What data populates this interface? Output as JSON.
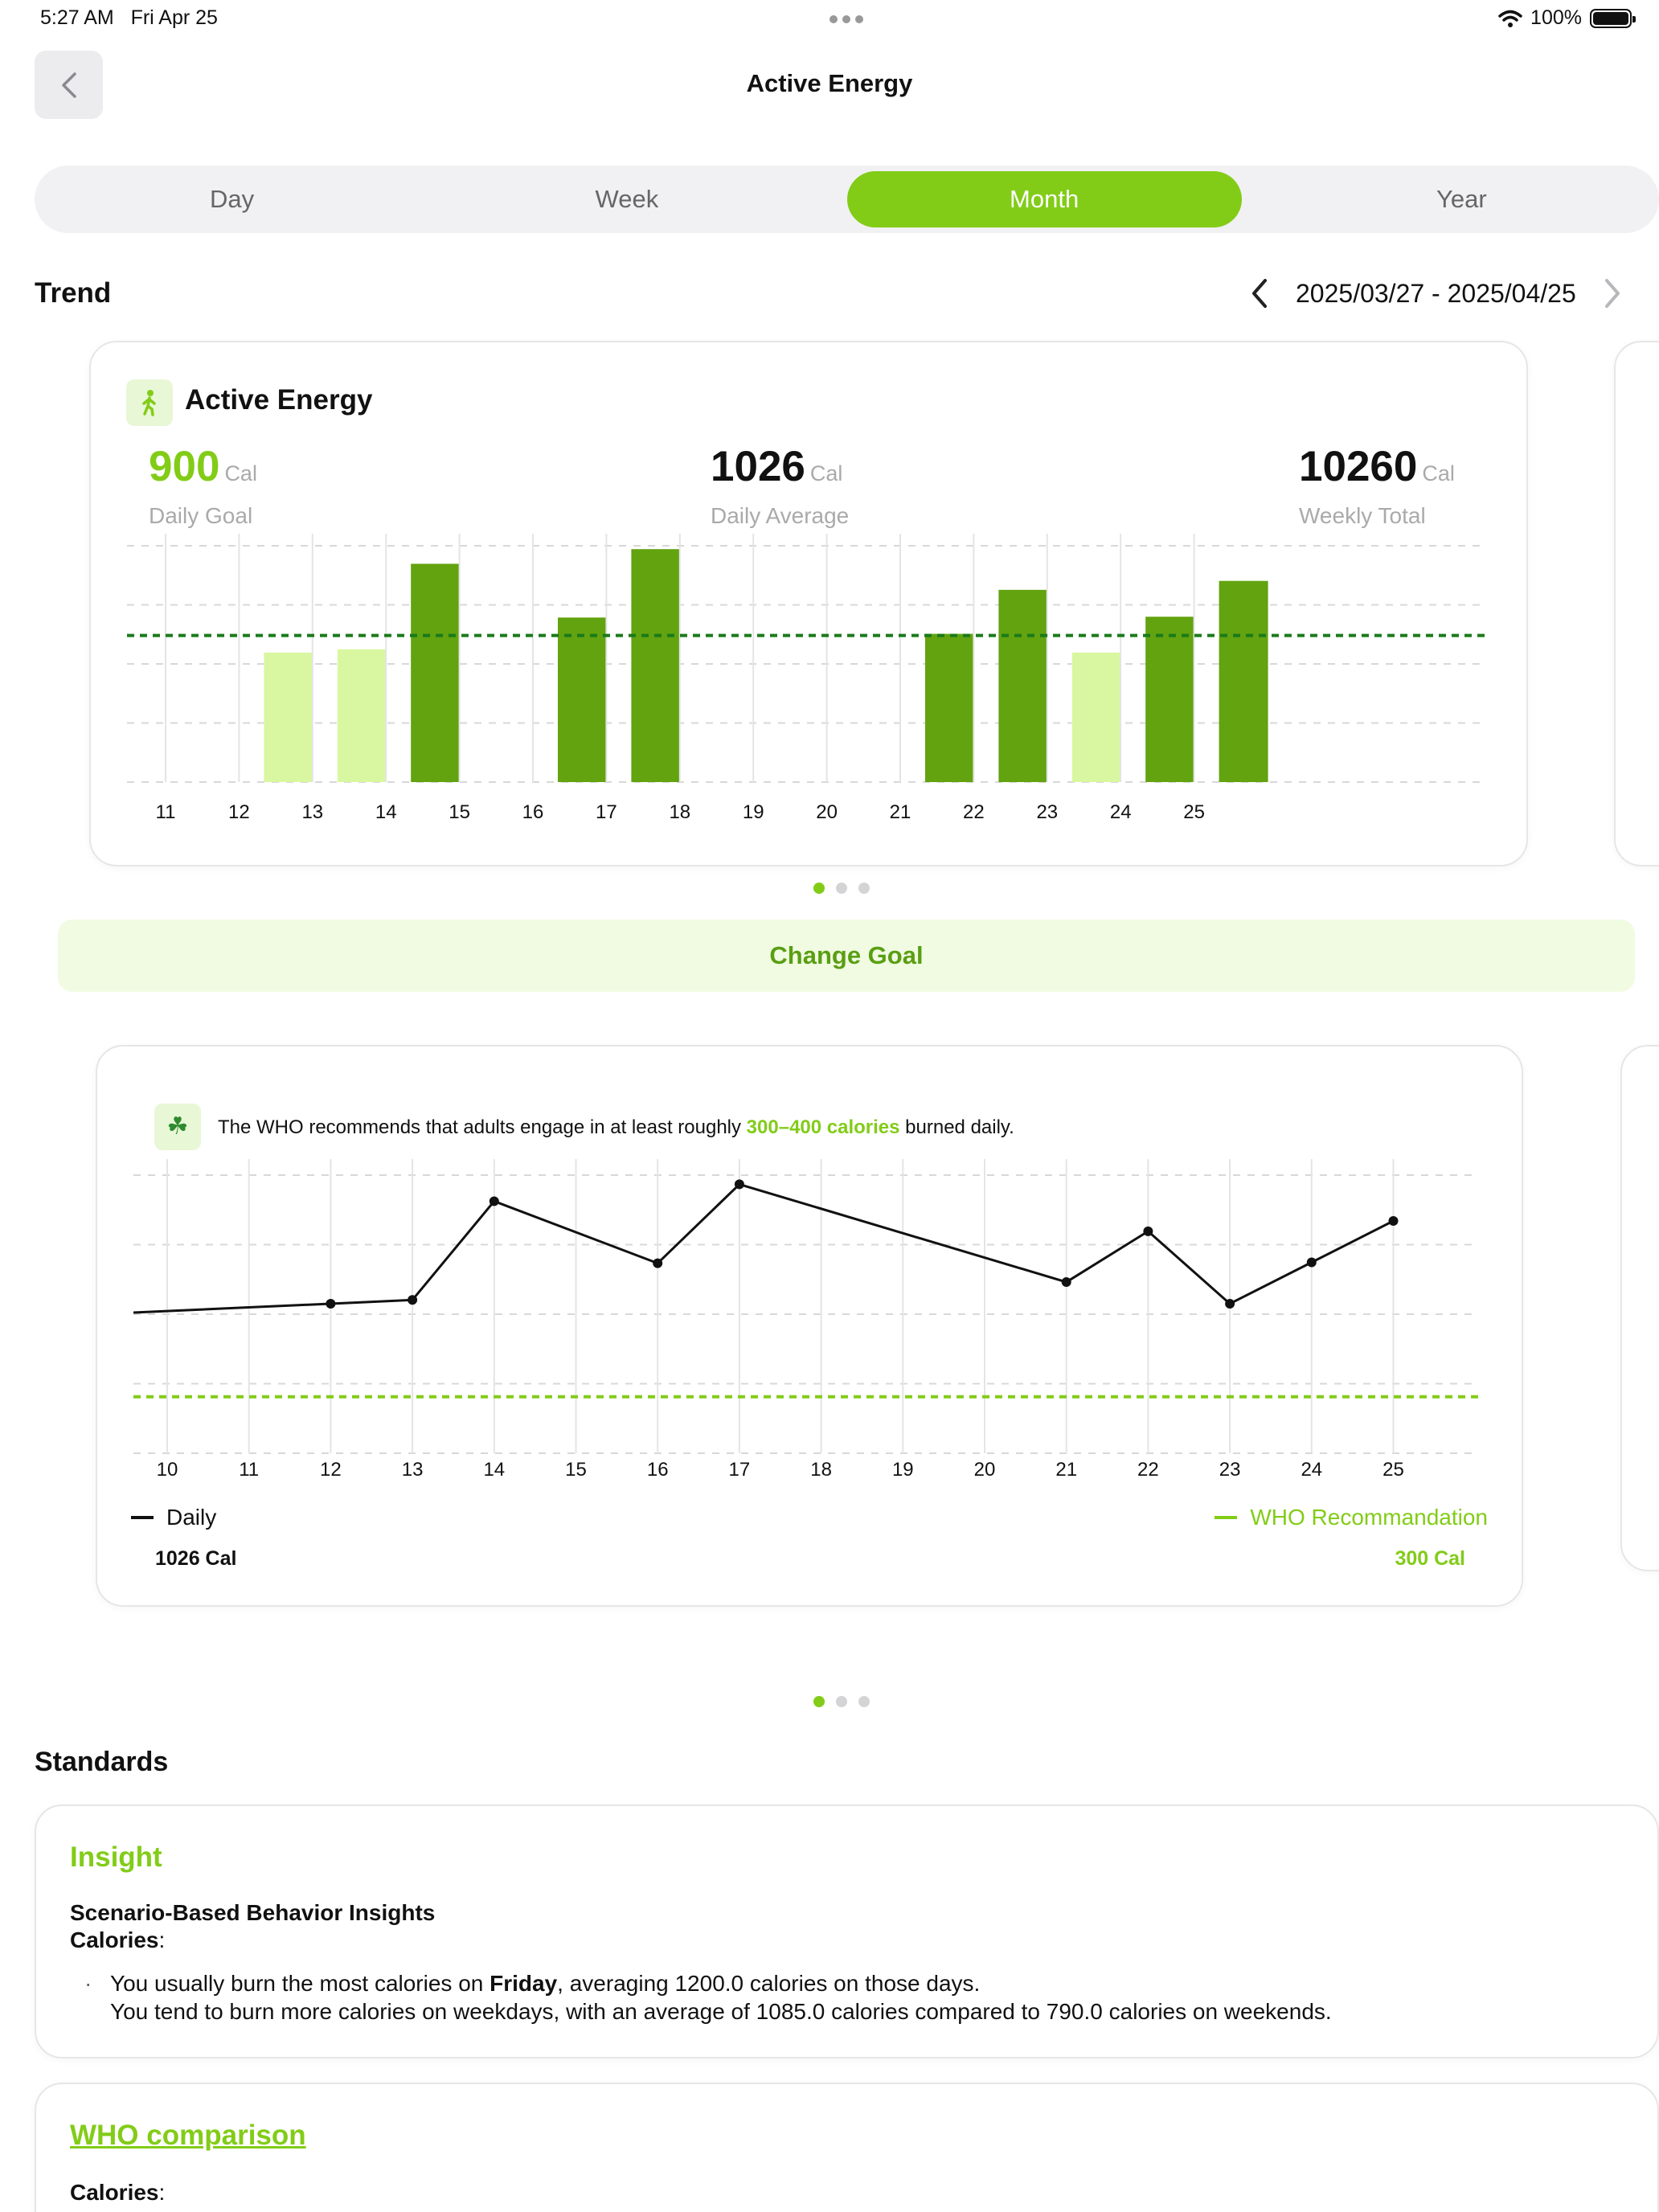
{
  "status": {
    "time": "5:27 AM",
    "date": "Fri Apr 25",
    "battery": "100%"
  },
  "header": {
    "title": "Active Energy"
  },
  "tabs": [
    {
      "label": "Day",
      "active": false
    },
    {
      "label": "Week",
      "active": false
    },
    {
      "label": "Month",
      "active": true
    },
    {
      "label": "Year",
      "active": false
    }
  ],
  "trend": {
    "label": "Trend",
    "date_range": "2025/03/27 - 2025/04/25"
  },
  "energy_card": {
    "title": "Active Energy",
    "goal": {
      "value": "900",
      "unit": "Cal",
      "label": "Daily Goal"
    },
    "average": {
      "value": "1026",
      "unit": "Cal",
      "label": "Daily Average"
    },
    "total": {
      "value": "10260",
      "unit": "Cal",
      "label": "Weekly Total"
    }
  },
  "change_goal_label": "Change Goal",
  "who_card": {
    "text_before": "The WHO recommends that adults engage in at least roughly ",
    "text_highlight": "300–400 calories",
    "text_after": " burned daily.",
    "legend_daily": "Daily",
    "legend_who": "WHO Recommandation",
    "daily_value": "1026 Cal",
    "who_value": "300 Cal"
  },
  "standards": {
    "label": "Standards",
    "insight_title": "Insight",
    "insight_subtitle": "Scenario-Based Behavior Insights",
    "calories_label": "Calories",
    "colon": ":",
    "bullet": "·",
    "line1_pre": "You usually burn the most calories on ",
    "line1_bold": "Friday",
    "line1_post": ", averaging 1200.0 calories on those days.",
    "line2": "You tend to burn more calories on weekdays, with an average of 1085.0 calories compared to 790.0 calories on weekends.",
    "who_title": "WHO comparison",
    "who_calories_label": "Calories"
  },
  "colors": {
    "accent": "#82cc18",
    "bar_above": "#62a30f",
    "bar_below": "#d8f7a0",
    "goal_line": "#1a7a1a"
  },
  "chart_data": [
    {
      "type": "bar",
      "categories": [
        "11",
        "12",
        "13",
        "14",
        "15",
        "16",
        "17",
        "18",
        "19",
        "20",
        "21",
        "22",
        "23",
        "24",
        "25"
      ],
      "values": [
        null,
        795,
        815,
        1340,
        null,
        1010,
        1430,
        null,
        null,
        null,
        910,
        1180,
        795,
        1015,
        1235
      ],
      "goal": 900,
      "ylim": [
        0,
        1500
      ],
      "grid": true
    },
    {
      "type": "line",
      "categories": [
        "10",
        "11",
        "12",
        "13",
        "14",
        "15",
        "16",
        "17",
        "18",
        "19",
        "20",
        "21",
        "22",
        "23",
        "24",
        "25"
      ],
      "series": [
        {
          "name": "Daily",
          "values": [
            null,
            null,
            795,
            815,
            1340,
            null,
            1010,
            1430,
            null,
            null,
            null,
            910,
            1180,
            795,
            1015,
            1235
          ]
        },
        {
          "name": "WHO Recommandation",
          "values": [
            300,
            300,
            300,
            300,
            300,
            300,
            300,
            300,
            300,
            300,
            300,
            300,
            300,
            300,
            300,
            300
          ]
        }
      ],
      "ylim": [
        0,
        1500
      ],
      "grid": true
    }
  ]
}
